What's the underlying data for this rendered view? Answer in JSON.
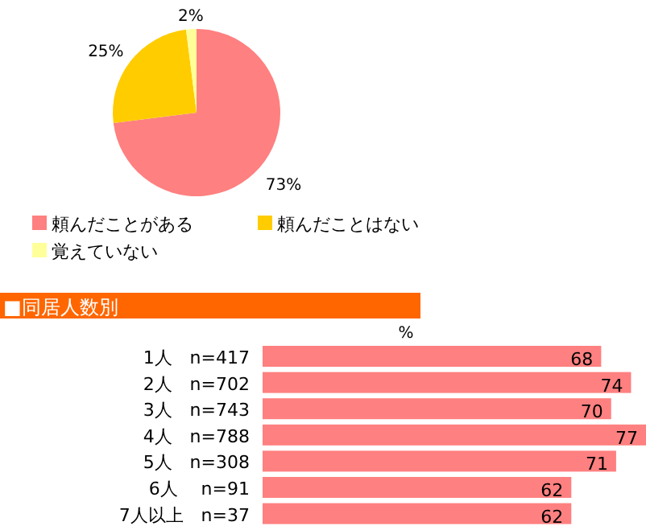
{
  "chart_data": [
    {
      "type": "pie",
      "categories": [
        "頼んだことがある",
        "頼んだことはない",
        "覚えていない"
      ],
      "values": [
        73,
        25,
        2
      ],
      "colors": [
        "#ff8080",
        "#ffcc00",
        "#ffff99"
      ],
      "value_labels": [
        "73%",
        "25%",
        "2%"
      ],
      "legend": "bottom"
    },
    {
      "type": "bar",
      "orientation": "horizontal",
      "title": "■同居人数別",
      "xlabel": "%",
      "categories": [
        "1人　n=417",
        "2人　n=702",
        "3人　n=743",
        "4人　n=788",
        "5人　n=308",
        "6人　 n=91",
        "7人以上　n=37"
      ],
      "values": [
        68,
        74,
        70,
        77,
        71,
        62,
        62
      ],
      "color": "#ff8080",
      "data_labels": true
    }
  ]
}
